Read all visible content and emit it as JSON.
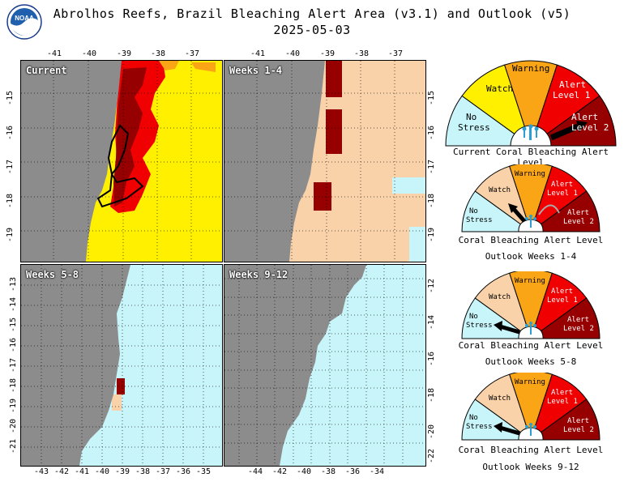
{
  "header": {
    "title_line1": "Abrolhos Reefs, Brazil Bleaching Alert Area (v3.1) and Outlook (v5)",
    "title_line2": "2025-05-03",
    "logo_text": "NOAA"
  },
  "panels": [
    {
      "label": "Current",
      "top_ticks": [
        "-41",
        "-40",
        "-39",
        "-38",
        "-37"
      ],
      "left_ticks": [
        "-15",
        "-16",
        "-17",
        "-18",
        "-19"
      ],
      "status": "mostly Alert Level 1/2 near coast, Watch offshore"
    },
    {
      "label": "Weeks 1-4",
      "top_ticks": [
        "-41",
        "-40",
        "-39",
        "-38",
        "-37"
      ],
      "right_ticks": [
        "-15",
        "-16",
        "-17",
        "-18",
        "-19"
      ]
    },
    {
      "label": "Weeks 5-8",
      "left_ticks": [
        "-13",
        "-14",
        "-15",
        "-16",
        "-17",
        "-18",
        "-19",
        "-20",
        "-21"
      ],
      "bottom_ticks": [
        "-43",
        "-42",
        "-41",
        "-40",
        "-39",
        "-38",
        "-37",
        "-36",
        "-35"
      ]
    },
    {
      "label": "Weeks 9-12",
      "right_ticks": [
        "-12",
        "-14",
        "-16",
        "-18",
        "-20",
        "-22"
      ],
      "bottom_ticks": [
        "-44",
        "-42",
        "-40",
        "-38",
        "-36",
        "-34"
      ]
    }
  ],
  "gauges": [
    {
      "caption1": "Current Coral Bleaching Alert Level",
      "caption2": "",
      "selected": "Alert Level 2",
      "warning": "Warning",
      "watch": "Watch",
      "alert1_a": "Alert",
      "alert1_b": "Level 1",
      "alert2_a": "Alert",
      "alert2_b": "Level 2",
      "nostress_a": "No",
      "nostress_b": "Stress"
    },
    {
      "caption1": "Coral Bleaching Alert Level",
      "caption2": "Outlook Weeks 1-4",
      "selected": "Watch",
      "warning": "Warning",
      "watch": "Watch",
      "alert1_a": "Alert",
      "alert1_b": "Level 1",
      "alert2_a": "Alert",
      "alert2_b": "Level 2",
      "nostress_a": "No",
      "nostress_b": "Stress"
    },
    {
      "caption1": "Coral Bleaching Alert Level",
      "caption2": "Outlook Weeks 5-8",
      "selected": "No Stress",
      "warning": "Warning",
      "watch": "Watch",
      "alert1_a": "Alert",
      "alert1_b": "Level 1",
      "alert2_a": "Alert",
      "alert2_b": "Level 2",
      "nostress_a": "No",
      "nostress_b": "Stress"
    },
    {
      "caption1": "Coral Bleaching Alert Level",
      "caption2": "Outlook Weeks 9-12",
      "selected": "No Stress",
      "warning": "Warning",
      "watch": "Watch",
      "alert1_a": "Alert",
      "alert1_b": "Level 1",
      "alert2_a": "Alert",
      "alert2_b": "Level 2",
      "nostress_a": "No",
      "nostress_b": "Stress"
    }
  ],
  "colors": {
    "land": "#8c8c8c",
    "no_stress": "#c8f5fa",
    "watch": "#fff000",
    "warning": "#faa516",
    "alert1": "#f00000",
    "alert2": "#960000",
    "outlook_watch": "#fad2aa"
  }
}
